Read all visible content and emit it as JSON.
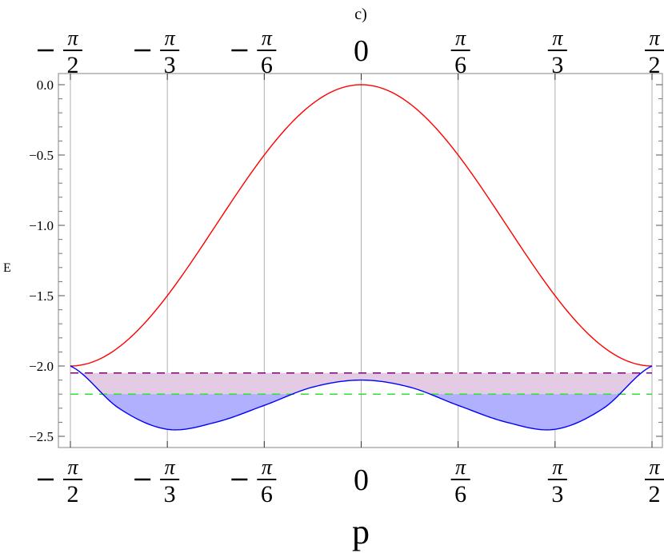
{
  "chart_data": {
    "type": "line",
    "title": "c)",
    "xlabel": "p",
    "ylabel": "E",
    "xlim": [
      -1.5708,
      1.5708
    ],
    "ylim": [
      -2.5,
      0.0
    ],
    "grid": "vertical lines at x ticks",
    "x_ticks": [
      {
        "value": -1.5708,
        "sign": "−",
        "num": "π",
        "den": "2"
      },
      {
        "value": -1.0472,
        "sign": "−",
        "num": "π",
        "den": "3"
      },
      {
        "value": -0.5236,
        "sign": "−",
        "num": "π",
        "den": "6"
      },
      {
        "value": 0,
        "plain": "0"
      },
      {
        "value": 0.5236,
        "sign": "",
        "num": "π",
        "den": "6"
      },
      {
        "value": 1.0472,
        "sign": "",
        "num": "π",
        "den": "3"
      },
      {
        "value": 1.5708,
        "sign": "",
        "num": "π",
        "den": "2"
      }
    ],
    "y_ticks": [
      "0.0",
      "−0.5",
      "−1.0",
      "−1.5",
      "−2.0",
      "−2.5"
    ],
    "y_tick_values": [
      0.0,
      -0.5,
      -1.0,
      -1.5,
      -2.0,
      -2.5
    ],
    "series": [
      {
        "name": "upper band",
        "color": "#ff0000",
        "x": [
          -1.5708,
          -1.309,
          -1.0472,
          -0.7854,
          -0.5236,
          -0.2618,
          0,
          0.2618,
          0.5236,
          0.7854,
          1.0472,
          1.309,
          1.5708
        ],
        "values": [
          -2.0,
          -1.87,
          -1.5,
          -1.0,
          -0.5,
          -0.13,
          0.0,
          -0.13,
          -0.5,
          -1.0,
          -1.5,
          -1.87,
          -2.0
        ]
      },
      {
        "name": "lower band",
        "color": "#0000ff",
        "x": [
          -1.5708,
          -1.309,
          -1.0472,
          -0.7854,
          -0.5236,
          -0.2618,
          0,
          0.2618,
          0.5236,
          0.7854,
          1.0472,
          1.309,
          1.5708
        ],
        "values": [
          -2.0,
          -2.3,
          -2.45,
          -2.4,
          -2.28,
          -2.15,
          -2.1,
          -2.15,
          -2.28,
          -2.4,
          -2.45,
          -2.3,
          -2.0
        ]
      },
      {
        "name": "purple dashed level",
        "color": "#800080",
        "style": "dashed",
        "values": [
          -2.05
        ]
      },
      {
        "name": "green dashed level",
        "color": "#33dd33",
        "style": "dashed",
        "values": [
          -2.2
        ]
      }
    ],
    "fills": [
      {
        "between": [
          "purple dashed level",
          "lower band"
        ],
        "color": "#e3cce3",
        "note": "region between E=-2.05 and lower band"
      },
      {
        "between": [
          "green dashed level",
          "lower band"
        ],
        "color": "#b0b0ff",
        "note": "region below E=-2.2 down to lower band"
      }
    ]
  }
}
